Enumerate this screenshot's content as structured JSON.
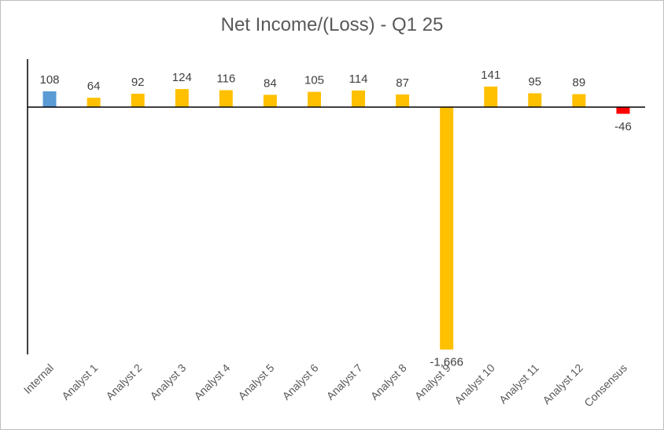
{
  "chart_data": {
    "type": "bar",
    "title": "Net Income/(Loss) - Q1 25",
    "categories": [
      "Internal",
      "Analyst 1",
      "Analyst 2",
      "Analyst 3",
      "Analyst 4",
      "Analyst 5",
      "Analyst 6",
      "Analyst 7",
      "Analyst 8",
      "Analyst 9",
      "Analyst 10",
      "Analyst 11",
      "Analyst 12",
      "Consensus"
    ],
    "values": [
      108,
      64,
      92,
      124,
      116,
      84,
      105,
      114,
      87,
      -1666,
      141,
      95,
      89,
      -46
    ],
    "labels": [
      "108",
      "64",
      "92",
      "124",
      "116",
      "84",
      "105",
      "114",
      "87",
      "-1,666",
      "141",
      "95",
      "89",
      "-46"
    ],
    "colors": [
      "#5b9bd5",
      "#ffc000",
      "#ffc000",
      "#ffc000",
      "#ffc000",
      "#ffc000",
      "#ffc000",
      "#ffc000",
      "#ffc000",
      "#ffc000",
      "#ffc000",
      "#ffc000",
      "#ffc000",
      "#ff0000"
    ],
    "ylim": [
      -1700,
      330
    ],
    "grid": false,
    "legend": "none"
  }
}
